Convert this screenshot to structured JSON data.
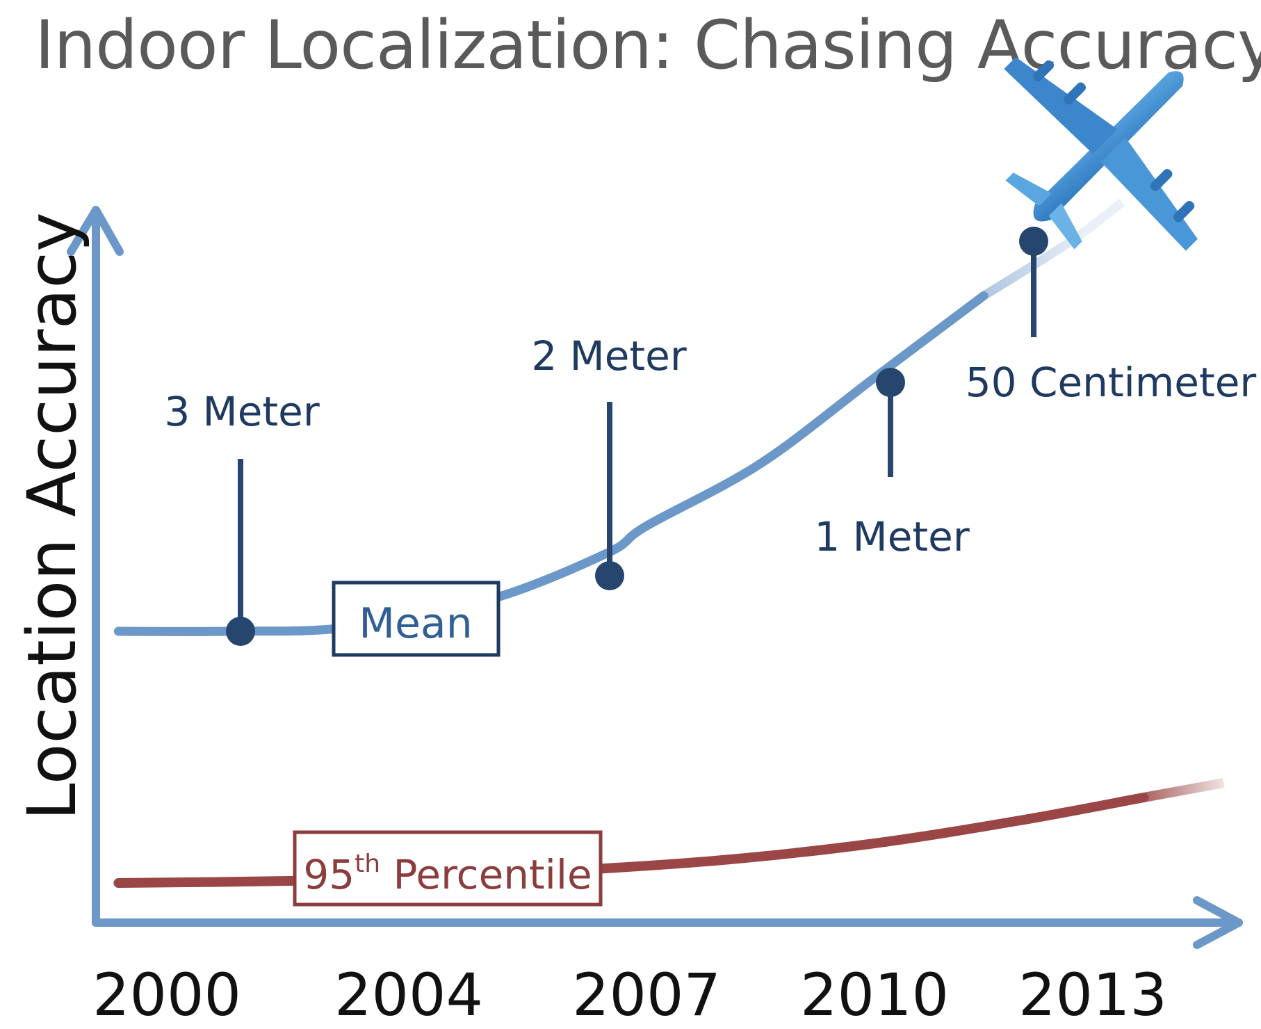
{
  "chart_data": {
    "type": "line",
    "title": "Indoor Localization: Chasing Accuracy",
    "xlabel": "",
    "ylabel": "Location Accuracy",
    "x_ticks": [
      "2000",
      "2004",
      "2007",
      "2010",
      "2013"
    ],
    "series": [
      {
        "name": "Mean",
        "color": "#6b98c8",
        "points": [
          [
            1999.2,
            0
          ],
          [
            2001,
            0
          ],
          [
            2003,
            0.01
          ],
          [
            2005,
            0.08
          ],
          [
            2006.5,
            0.2
          ],
          [
            2007,
            0.27
          ],
          [
            2008.5,
            0.43
          ],
          [
            2010,
            0.65
          ],
          [
            2011.5,
            0.86
          ],
          [
            2012.7,
            1.0
          ],
          [
            2013.4,
            1.1
          ]
        ]
      },
      {
        "name": "95th Percentile",
        "color": "#9b4646",
        "points": [
          [
            1999.2,
            0
          ],
          [
            2002,
            0.01
          ],
          [
            2004,
            0.03
          ],
          [
            2006,
            0.06
          ],
          [
            2008,
            0.11
          ],
          [
            2010,
            0.19
          ],
          [
            2012,
            0.3
          ],
          [
            2013.7,
            0.41
          ],
          [
            2014.8,
            0.48
          ]
        ]
      }
    ],
    "milestones": [
      {
        "label": "3 Meter",
        "position": "above"
      },
      {
        "label": "2 Meter",
        "position": "above"
      },
      {
        "label": "1 Meter",
        "position": "below"
      },
      {
        "label": "50 Centimeter",
        "position": "below"
      }
    ],
    "legend_boxes": {
      "mean": "Mean",
      "p95_base": "95",
      "p95_sup": "th",
      "p95_rest": " Percentile"
    },
    "icon": "airplane-icon",
    "colors": {
      "axis": "#6b98c8",
      "mean_line": "#6b98c8",
      "p95_line": "#9b4646",
      "milestone": "#26466f",
      "airplane": "#3f8ed0"
    }
  }
}
